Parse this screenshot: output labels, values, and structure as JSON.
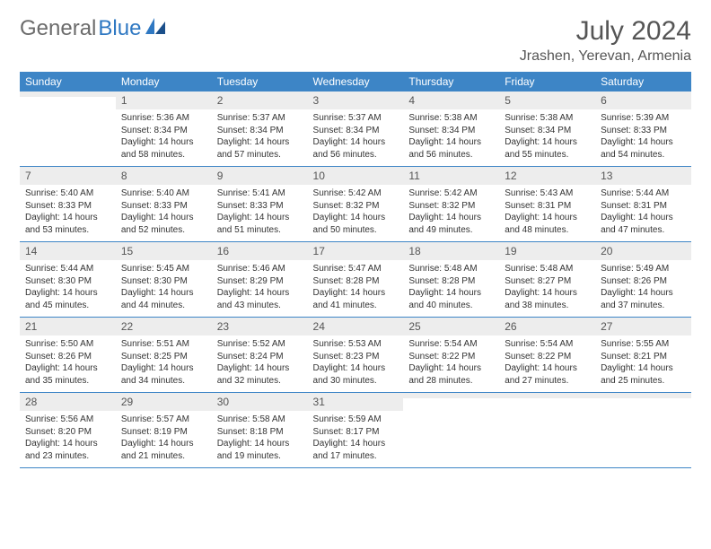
{
  "brand": {
    "text1": "General",
    "text2": "Blue"
  },
  "title": "July 2024",
  "location": "Jrashen, Yerevan, Armenia",
  "colors": {
    "header_bg": "#3d85c6",
    "header_text": "#ffffff",
    "daynum_bg": "#ededed",
    "border": "#3d85c6",
    "title_color": "#555555",
    "body_text": "#333333"
  },
  "weekdays": [
    "Sunday",
    "Monday",
    "Tuesday",
    "Wednesday",
    "Thursday",
    "Friday",
    "Saturday"
  ],
  "weeks": [
    [
      {
        "n": "",
        "sunrise": "",
        "sunset": "",
        "daylight": ""
      },
      {
        "n": "1",
        "sunrise": "Sunrise: 5:36 AM",
        "sunset": "Sunset: 8:34 PM",
        "daylight": "Daylight: 14 hours and 58 minutes."
      },
      {
        "n": "2",
        "sunrise": "Sunrise: 5:37 AM",
        "sunset": "Sunset: 8:34 PM",
        "daylight": "Daylight: 14 hours and 57 minutes."
      },
      {
        "n": "3",
        "sunrise": "Sunrise: 5:37 AM",
        "sunset": "Sunset: 8:34 PM",
        "daylight": "Daylight: 14 hours and 56 minutes."
      },
      {
        "n": "4",
        "sunrise": "Sunrise: 5:38 AM",
        "sunset": "Sunset: 8:34 PM",
        "daylight": "Daylight: 14 hours and 56 minutes."
      },
      {
        "n": "5",
        "sunrise": "Sunrise: 5:38 AM",
        "sunset": "Sunset: 8:34 PM",
        "daylight": "Daylight: 14 hours and 55 minutes."
      },
      {
        "n": "6",
        "sunrise": "Sunrise: 5:39 AM",
        "sunset": "Sunset: 8:33 PM",
        "daylight": "Daylight: 14 hours and 54 minutes."
      }
    ],
    [
      {
        "n": "7",
        "sunrise": "Sunrise: 5:40 AM",
        "sunset": "Sunset: 8:33 PM",
        "daylight": "Daylight: 14 hours and 53 minutes."
      },
      {
        "n": "8",
        "sunrise": "Sunrise: 5:40 AM",
        "sunset": "Sunset: 8:33 PM",
        "daylight": "Daylight: 14 hours and 52 minutes."
      },
      {
        "n": "9",
        "sunrise": "Sunrise: 5:41 AM",
        "sunset": "Sunset: 8:33 PM",
        "daylight": "Daylight: 14 hours and 51 minutes."
      },
      {
        "n": "10",
        "sunrise": "Sunrise: 5:42 AM",
        "sunset": "Sunset: 8:32 PM",
        "daylight": "Daylight: 14 hours and 50 minutes."
      },
      {
        "n": "11",
        "sunrise": "Sunrise: 5:42 AM",
        "sunset": "Sunset: 8:32 PM",
        "daylight": "Daylight: 14 hours and 49 minutes."
      },
      {
        "n": "12",
        "sunrise": "Sunrise: 5:43 AM",
        "sunset": "Sunset: 8:31 PM",
        "daylight": "Daylight: 14 hours and 48 minutes."
      },
      {
        "n": "13",
        "sunrise": "Sunrise: 5:44 AM",
        "sunset": "Sunset: 8:31 PM",
        "daylight": "Daylight: 14 hours and 47 minutes."
      }
    ],
    [
      {
        "n": "14",
        "sunrise": "Sunrise: 5:44 AM",
        "sunset": "Sunset: 8:30 PM",
        "daylight": "Daylight: 14 hours and 45 minutes."
      },
      {
        "n": "15",
        "sunrise": "Sunrise: 5:45 AM",
        "sunset": "Sunset: 8:30 PM",
        "daylight": "Daylight: 14 hours and 44 minutes."
      },
      {
        "n": "16",
        "sunrise": "Sunrise: 5:46 AM",
        "sunset": "Sunset: 8:29 PM",
        "daylight": "Daylight: 14 hours and 43 minutes."
      },
      {
        "n": "17",
        "sunrise": "Sunrise: 5:47 AM",
        "sunset": "Sunset: 8:28 PM",
        "daylight": "Daylight: 14 hours and 41 minutes."
      },
      {
        "n": "18",
        "sunrise": "Sunrise: 5:48 AM",
        "sunset": "Sunset: 8:28 PM",
        "daylight": "Daylight: 14 hours and 40 minutes."
      },
      {
        "n": "19",
        "sunrise": "Sunrise: 5:48 AM",
        "sunset": "Sunset: 8:27 PM",
        "daylight": "Daylight: 14 hours and 38 minutes."
      },
      {
        "n": "20",
        "sunrise": "Sunrise: 5:49 AM",
        "sunset": "Sunset: 8:26 PM",
        "daylight": "Daylight: 14 hours and 37 minutes."
      }
    ],
    [
      {
        "n": "21",
        "sunrise": "Sunrise: 5:50 AM",
        "sunset": "Sunset: 8:26 PM",
        "daylight": "Daylight: 14 hours and 35 minutes."
      },
      {
        "n": "22",
        "sunrise": "Sunrise: 5:51 AM",
        "sunset": "Sunset: 8:25 PM",
        "daylight": "Daylight: 14 hours and 34 minutes."
      },
      {
        "n": "23",
        "sunrise": "Sunrise: 5:52 AM",
        "sunset": "Sunset: 8:24 PM",
        "daylight": "Daylight: 14 hours and 32 minutes."
      },
      {
        "n": "24",
        "sunrise": "Sunrise: 5:53 AM",
        "sunset": "Sunset: 8:23 PM",
        "daylight": "Daylight: 14 hours and 30 minutes."
      },
      {
        "n": "25",
        "sunrise": "Sunrise: 5:54 AM",
        "sunset": "Sunset: 8:22 PM",
        "daylight": "Daylight: 14 hours and 28 minutes."
      },
      {
        "n": "26",
        "sunrise": "Sunrise: 5:54 AM",
        "sunset": "Sunset: 8:22 PM",
        "daylight": "Daylight: 14 hours and 27 minutes."
      },
      {
        "n": "27",
        "sunrise": "Sunrise: 5:55 AM",
        "sunset": "Sunset: 8:21 PM",
        "daylight": "Daylight: 14 hours and 25 minutes."
      }
    ],
    [
      {
        "n": "28",
        "sunrise": "Sunrise: 5:56 AM",
        "sunset": "Sunset: 8:20 PM",
        "daylight": "Daylight: 14 hours and 23 minutes."
      },
      {
        "n": "29",
        "sunrise": "Sunrise: 5:57 AM",
        "sunset": "Sunset: 8:19 PM",
        "daylight": "Daylight: 14 hours and 21 minutes."
      },
      {
        "n": "30",
        "sunrise": "Sunrise: 5:58 AM",
        "sunset": "Sunset: 8:18 PM",
        "daylight": "Daylight: 14 hours and 19 minutes."
      },
      {
        "n": "31",
        "sunrise": "Sunrise: 5:59 AM",
        "sunset": "Sunset: 8:17 PM",
        "daylight": "Daylight: 14 hours and 17 minutes."
      },
      {
        "n": "",
        "sunrise": "",
        "sunset": "",
        "daylight": ""
      },
      {
        "n": "",
        "sunrise": "",
        "sunset": "",
        "daylight": ""
      },
      {
        "n": "",
        "sunrise": "",
        "sunset": "",
        "daylight": ""
      }
    ]
  ]
}
